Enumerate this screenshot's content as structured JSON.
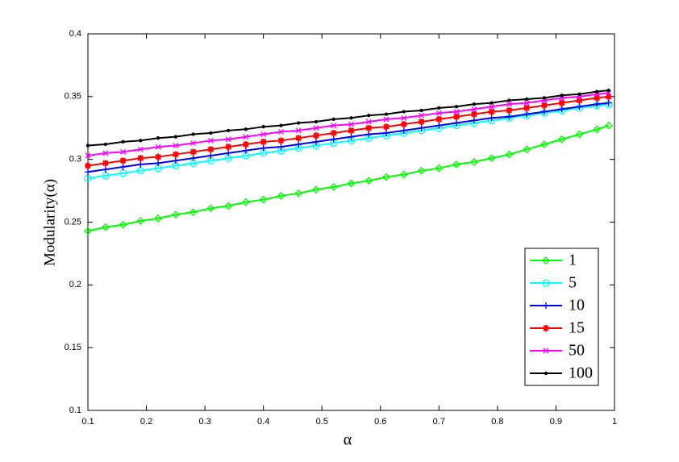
{
  "chart_data": {
    "type": "line",
    "xlabel": "α",
    "ylabel": "Modularity(α)",
    "x": [
      0.1,
      0.13,
      0.16,
      0.19,
      0.22,
      0.25,
      0.28,
      0.31,
      0.34,
      0.37,
      0.4,
      0.43,
      0.46,
      0.49,
      0.52,
      0.55,
      0.58,
      0.61,
      0.64,
      0.67,
      0.7,
      0.73,
      0.76,
      0.79,
      0.82,
      0.85,
      0.88,
      0.91,
      0.94,
      0.97,
      0.99
    ],
    "series": [
      {
        "name": "1",
        "color": "#00ff00",
        "marker": "diamond",
        "values": [
          0.243,
          0.246,
          0.248,
          0.251,
          0.253,
          0.256,
          0.258,
          0.261,
          0.263,
          0.266,
          0.268,
          0.271,
          0.273,
          0.276,
          0.278,
          0.281,
          0.283,
          0.286,
          0.288,
          0.291,
          0.293,
          0.296,
          0.298,
          0.301,
          0.304,
          0.308,
          0.312,
          0.316,
          0.32,
          0.324,
          0.327
        ]
      },
      {
        "name": "5",
        "color": "#00ffff",
        "marker": "circle",
        "values": [
          0.285,
          0.287,
          0.289,
          0.291,
          0.293,
          0.295,
          0.297,
          0.299,
          0.301,
          0.303,
          0.305,
          0.307,
          0.309,
          0.311,
          0.313,
          0.315,
          0.317,
          0.319,
          0.321,
          0.323,
          0.325,
          0.327,
          0.329,
          0.331,
          0.333,
          0.335,
          0.337,
          0.339,
          0.341,
          0.343,
          0.344
        ]
      },
      {
        "name": "10",
        "color": "#0000ff",
        "marker": "plus",
        "values": [
          0.29,
          0.292,
          0.294,
          0.296,
          0.297,
          0.299,
          0.301,
          0.303,
          0.305,
          0.307,
          0.309,
          0.31,
          0.312,
          0.314,
          0.316,
          0.318,
          0.32,
          0.321,
          0.323,
          0.325,
          0.327,
          0.329,
          0.331,
          0.333,
          0.334,
          0.336,
          0.338,
          0.34,
          0.342,
          0.344,
          0.345
        ]
      },
      {
        "name": "15",
        "color": "#ff0000",
        "marker": "star",
        "values": [
          0.295,
          0.297,
          0.299,
          0.301,
          0.302,
          0.304,
          0.306,
          0.308,
          0.31,
          0.312,
          0.314,
          0.315,
          0.317,
          0.319,
          0.321,
          0.323,
          0.325,
          0.326,
          0.328,
          0.33,
          0.332,
          0.334,
          0.336,
          0.338,
          0.339,
          0.341,
          0.343,
          0.345,
          0.347,
          0.349,
          0.35
        ]
      },
      {
        "name": "50",
        "color": "#ff00ff",
        "marker": "x",
        "values": [
          0.303,
          0.305,
          0.306,
          0.308,
          0.31,
          0.311,
          0.313,
          0.315,
          0.316,
          0.318,
          0.32,
          0.322,
          0.323,
          0.325,
          0.327,
          0.328,
          0.33,
          0.332,
          0.333,
          0.335,
          0.337,
          0.338,
          0.34,
          0.342,
          0.344,
          0.345,
          0.347,
          0.349,
          0.35,
          0.352,
          0.353
        ]
      },
      {
        "name": "100",
        "color": "#000000",
        "marker": "dot",
        "values": [
          0.311,
          0.312,
          0.314,
          0.315,
          0.317,
          0.318,
          0.32,
          0.321,
          0.323,
          0.324,
          0.326,
          0.327,
          0.329,
          0.33,
          0.332,
          0.333,
          0.335,
          0.336,
          0.338,
          0.339,
          0.341,
          0.342,
          0.344,
          0.345,
          0.347,
          0.348,
          0.349,
          0.351,
          0.352,
          0.354,
          0.355
        ]
      }
    ],
    "xlim": [
      0.1,
      1
    ],
    "xticks": [
      0.1,
      0.2,
      0.3,
      0.4,
      0.5,
      0.6,
      0.7,
      0.8,
      0.9,
      1
    ],
    "ylim": [
      0.1,
      0.4
    ],
    "yticks": [
      0.1,
      0.15,
      0.2,
      0.25,
      0.3,
      0.35,
      0.4
    ],
    "grid": false,
    "legend": "lower right"
  }
}
